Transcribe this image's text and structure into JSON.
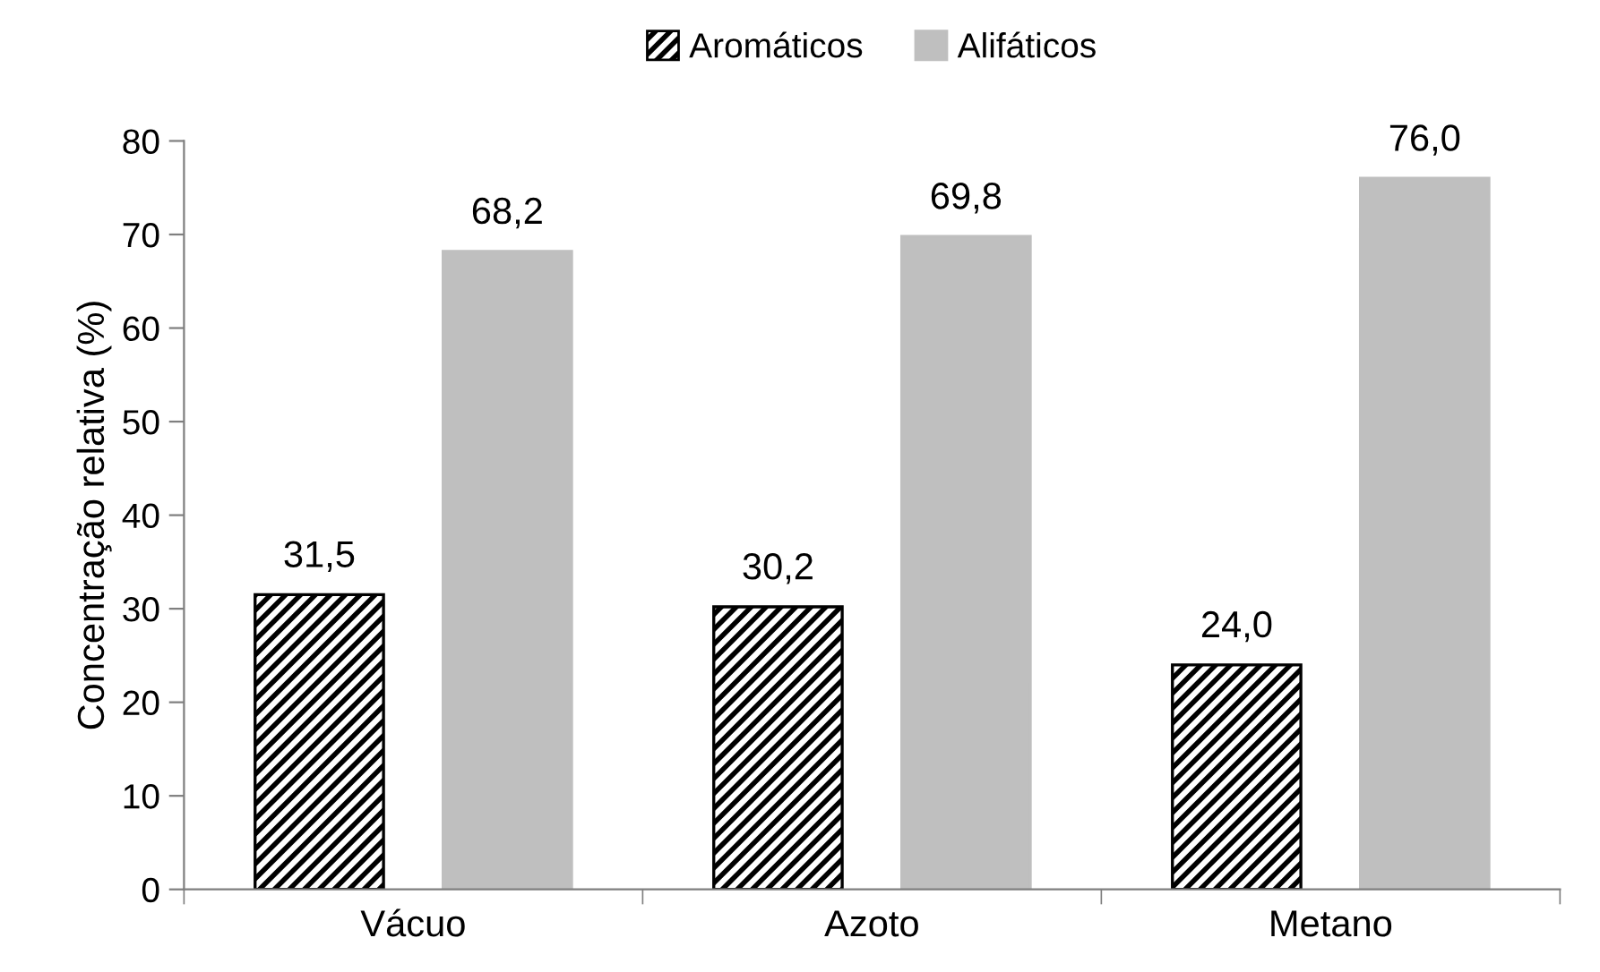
{
  "chart_data": {
    "type": "bar",
    "ylabel": "Concentração relativa (%)",
    "categories": [
      "Vácuo",
      "Azoto",
      "Metano"
    ],
    "series": [
      {
        "name": "Aromáticos",
        "color": "#000000",
        "values": [
          31.5,
          30.2,
          24.0
        ],
        "value_labels": [
          "31,5",
          "30,2",
          "24,0"
        ]
      },
      {
        "name": "Alifáticos",
        "color": "#bfbfbf",
        "values": [
          68.2,
          69.8,
          76.0
        ],
        "value_labels": [
          "68,2",
          "69,8",
          "76,0"
        ]
      }
    ],
    "ylim": [
      0,
      80
    ],
    "yticks": [
      0,
      10,
      20,
      30,
      40,
      50,
      60,
      70,
      80
    ],
    "grid": false,
    "legend": "top"
  }
}
